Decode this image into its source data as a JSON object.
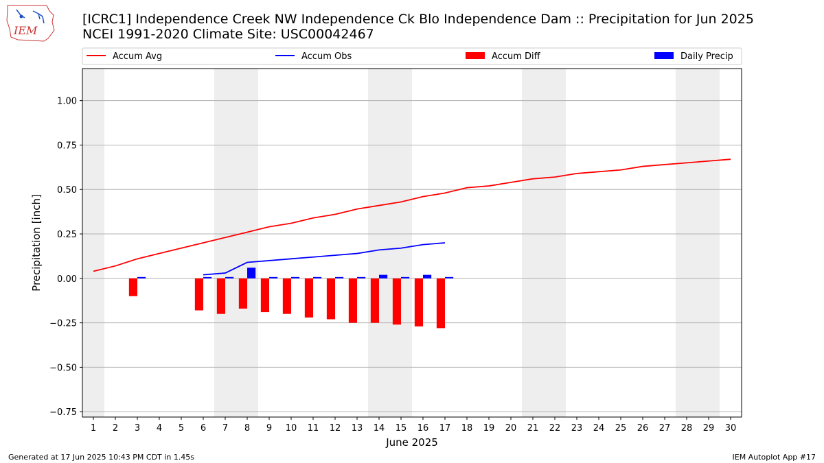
{
  "logo": {
    "text": "IEM"
  },
  "title": "[ICRC1] Independence Creek  NW Independence Ck Blo Independence Dam :: Precipitation for Jun 2025",
  "subtitle": "NCEI 1991-2020 Climate Site: USC00042467",
  "footer_left": "Generated at 17 Jun 2025 10:43 PM CDT in 1.45s",
  "footer_right": "IEM Autoplot App #17",
  "colors": {
    "avg": "#ff0000",
    "obs": "#0000ff",
    "diff": "#ff0000",
    "daily": "#0000ff",
    "weekend": "#eeeeee",
    "grid": "#b0b0b0"
  },
  "chart_data": {
    "type": "bar",
    "xlabel": "June 2025",
    "ylabel": "Precipitation [inch]",
    "xlim": [
      0.5,
      30.5
    ],
    "ylim": [
      -0.78,
      1.18
    ],
    "x_ticks": [
      1,
      2,
      3,
      4,
      5,
      6,
      7,
      8,
      9,
      10,
      11,
      12,
      13,
      14,
      15,
      16,
      17,
      18,
      19,
      20,
      21,
      22,
      23,
      24,
      25,
      26,
      27,
      28,
      29,
      30
    ],
    "y_ticks": [
      -0.75,
      -0.5,
      -0.25,
      0.0,
      0.25,
      0.5,
      0.75,
      1.0
    ],
    "y_tick_labels": [
      "−0.75",
      "−0.50",
      "−0.25",
      "0.00",
      "0.25",
      "0.50",
      "0.75",
      "1.00"
    ],
    "weekend_spans": [
      [
        0.5,
        1.5
      ],
      [
        6.5,
        8.5
      ],
      [
        13.5,
        15.5
      ],
      [
        20.5,
        22.5
      ],
      [
        27.5,
        29.5
      ]
    ],
    "grid": "horizontal",
    "legend": {
      "placement": "top",
      "entries": [
        "Accum Avg",
        "Accum Obs",
        "Accum Diff",
        "Daily Precip"
      ]
    },
    "series": [
      {
        "name": "Accum Avg",
        "kind": "line",
        "x": [
          1,
          2,
          3,
          4,
          5,
          6,
          7,
          8,
          9,
          10,
          11,
          12,
          13,
          14,
          15,
          16,
          17,
          18,
          19,
          20,
          21,
          22,
          23,
          24,
          25,
          26,
          27,
          28,
          29,
          30
        ],
        "values": [
          0.04,
          0.07,
          0.11,
          0.14,
          0.17,
          0.2,
          0.23,
          0.26,
          0.29,
          0.31,
          0.34,
          0.36,
          0.39,
          0.41,
          0.43,
          0.46,
          0.48,
          0.51,
          0.52,
          0.54,
          0.56,
          0.57,
          0.59,
          0.6,
          0.61,
          0.63,
          0.64,
          0.65,
          0.66,
          0.67
        ]
      },
      {
        "name": "Accum Obs",
        "kind": "line",
        "x": [
          6,
          7,
          8,
          9,
          10,
          11,
          12,
          13,
          14,
          15,
          16,
          17
        ],
        "values": [
          0.02,
          0.03,
          0.09,
          0.1,
          0.11,
          0.12,
          0.13,
          0.14,
          0.16,
          0.17,
          0.19,
          0.2
        ]
      },
      {
        "name": "Accum Diff",
        "kind": "bar",
        "x": [
          3,
          6,
          7,
          8,
          9,
          10,
          11,
          12,
          13,
          14,
          15,
          16,
          17
        ],
        "values": [
          -0.1,
          -0.18,
          -0.2,
          -0.17,
          -0.19,
          -0.2,
          -0.22,
          -0.23,
          -0.25,
          -0.25,
          -0.26,
          -0.27,
          -0.28
        ]
      },
      {
        "name": "Daily Precip",
        "kind": "bar",
        "x": [
          3,
          6,
          7,
          8,
          9,
          10,
          11,
          12,
          13,
          14,
          15,
          16,
          17
        ],
        "values": [
          0.005,
          0.005,
          0.005,
          0.06,
          0.005,
          0.005,
          0.005,
          0.005,
          0.005,
          0.02,
          0.005,
          0.02,
          0.005
        ]
      }
    ]
  }
}
